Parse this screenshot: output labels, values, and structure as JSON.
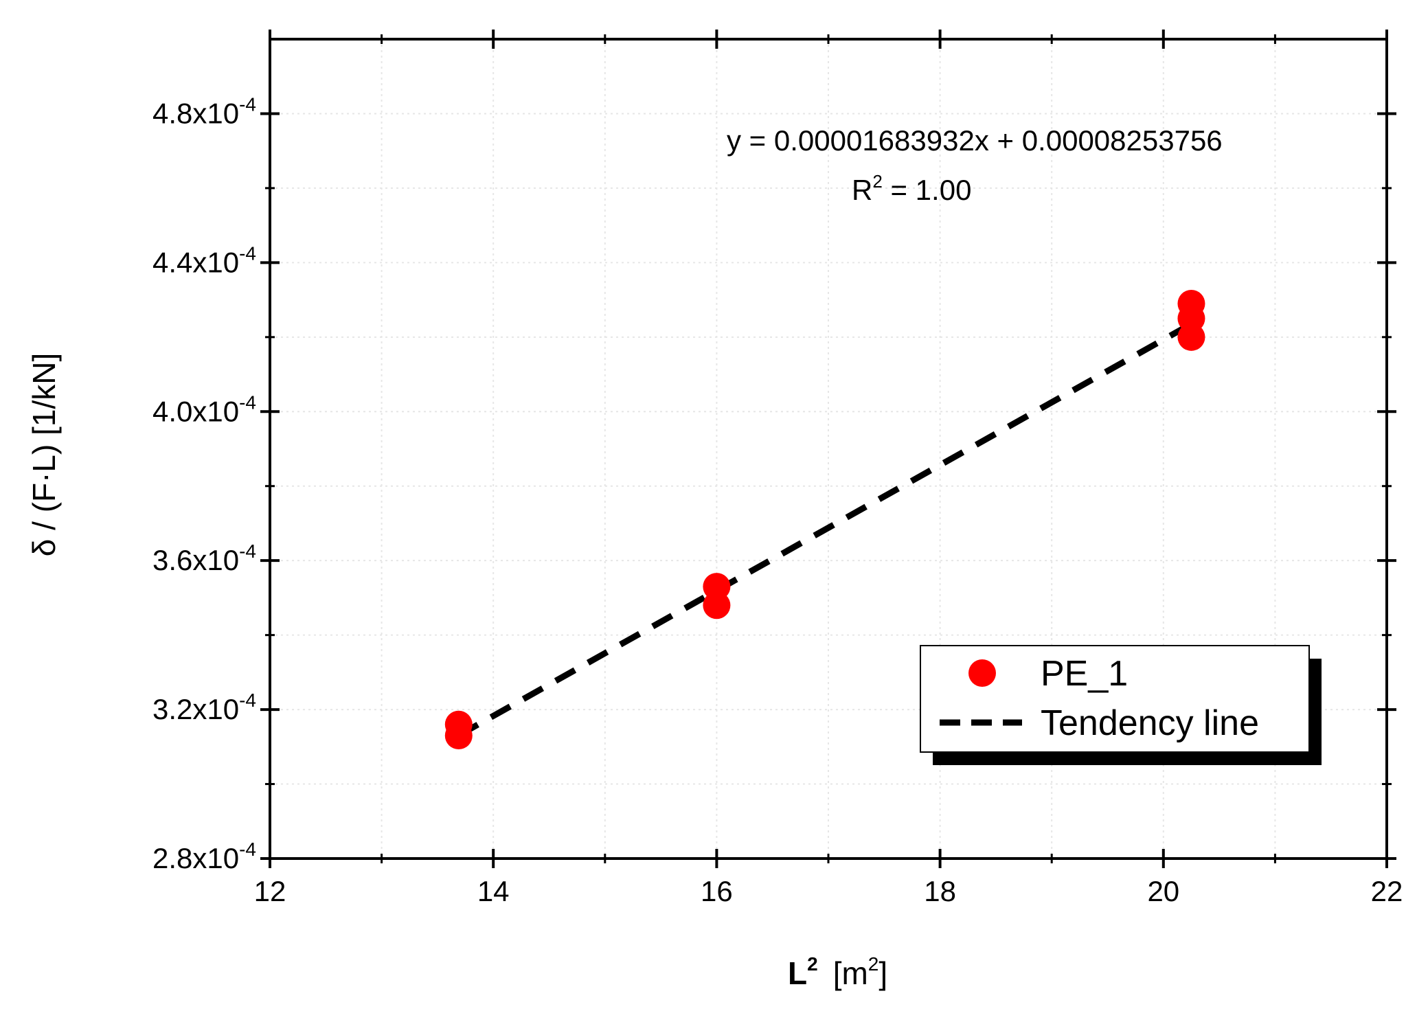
{
  "chart_data": {
    "type": "scatter",
    "x_axis": {
      "label_main": "L",
      "label_main_sup": "2",
      "label_unit": "[m",
      "label_unit_sup": "2",
      "label_unit_close": "]",
      "range": [
        12,
        22
      ],
      "ticks": [
        12,
        14,
        16,
        18,
        20,
        22
      ],
      "tick_labels": [
        "12",
        "14",
        "16",
        "18",
        "20",
        "22"
      ],
      "minor_step": 1
    },
    "y_axis": {
      "label": "δ / (F·L)  [1/kN]",
      "range": [
        0.00028,
        0.0005
      ],
      "ticks": [
        0.00028,
        0.00032,
        0.00036,
        0.0004,
        0.00044,
        0.00048
      ],
      "tick_labels": [
        {
          "mantissa": "2.8x10",
          "exp": "-4"
        },
        {
          "mantissa": "3.2x10",
          "exp": "-4"
        },
        {
          "mantissa": "3.6x10",
          "exp": "-4"
        },
        {
          "mantissa": "4.0x10",
          "exp": "-4"
        },
        {
          "mantissa": "4.4x10",
          "exp": "-4"
        },
        {
          "mantissa": "4.8x10",
          "exp": "-4"
        }
      ],
      "minor_step": 2e-05
    },
    "grid": true,
    "series": [
      {
        "name": "PE_1",
        "kind": "scatter",
        "color": "#ff0000",
        "points": [
          {
            "x": 13.69,
            "y": 0.000316
          },
          {
            "x": 13.69,
            "y": 0.000313
          },
          {
            "x": 16.0,
            "y": 0.000353
          },
          {
            "x": 16.0,
            "y": 0.000348
          },
          {
            "x": 20.25,
            "y": 0.000429
          },
          {
            "x": 20.25,
            "y": 0.000425
          },
          {
            "x": 20.25,
            "y": 0.00042
          }
        ]
      },
      {
        "name": "Tendency line",
        "kind": "line",
        "color": "#000000",
        "style": "dashed",
        "slope": 1.683932e-05,
        "intercept": 8.253756e-05,
        "x_range": [
          13.69,
          20.25
        ]
      }
    ],
    "annotations": {
      "equation": "y = 0.00001683932x +  0.00008253756",
      "r2_label": "R",
      "r2_sup": "2",
      "r2_value": " = 1.00"
    },
    "legend": {
      "placement": "bottom-right",
      "entries": [
        "PE_1",
        "Tendency line"
      ]
    }
  }
}
